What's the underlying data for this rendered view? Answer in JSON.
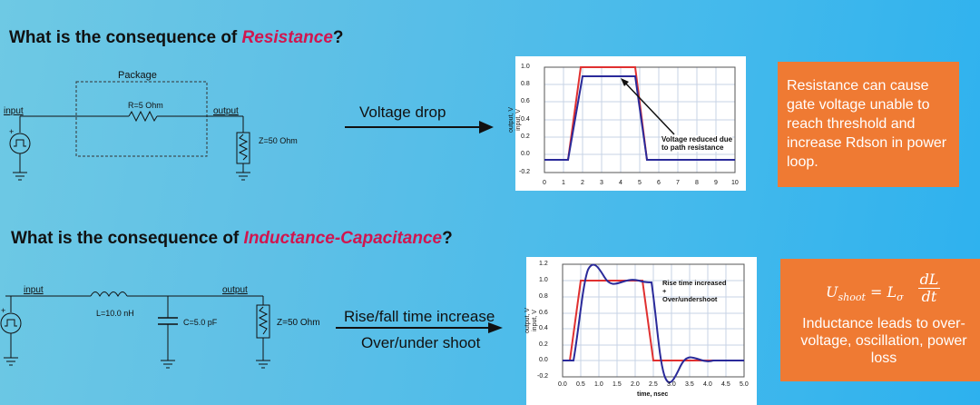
{
  "section1": {
    "question_prefix": "What is the consequence of ",
    "question_keyword": "Resistance",
    "question_suffix": "?",
    "labels": {
      "package": "Package",
      "resistor": "R=5 Ohm",
      "input": "input",
      "output": "output",
      "load": "Z=50 Ohm"
    },
    "effect": "Voltage drop",
    "graph": {
      "y_labels": [
        "1.0",
        "0.8",
        "0.6",
        "0.4",
        "0.2",
        "0.0",
        "-0.2"
      ],
      "x_labels": [
        "0",
        "1",
        "2",
        "3",
        "4",
        "5",
        "6",
        "7",
        "8",
        "9",
        "10"
      ],
      "ylabel_line1": "output, V",
      "ylabel_line2": "input, V",
      "annotation_line1": "Voltage reduced due",
      "annotation_line2": "to path resistance"
    },
    "box_text": "Resistance can cause gate voltage unable to reach threshold and increase Rdson in power loop."
  },
  "section2": {
    "question_prefix": "What is the consequence of ",
    "question_keyword": "Inductance-Capacitance",
    "question_suffix": "?",
    "labels": {
      "input": "input",
      "inductor": "L=10.0 nH",
      "capacitor": "C=5.0 pF",
      "output": "output",
      "load": "Z=50 Ohm"
    },
    "effect_line1": "Rise/fall time increase",
    "effect_line2": "Over/under shoot",
    "graph": {
      "y_labels": [
        "1.2",
        "1.0",
        "0.8",
        "0.6",
        "0.4",
        "0.2",
        "0.0",
        "-0.2"
      ],
      "x_labels": [
        "0.0",
        "0.5",
        "1.0",
        "1.5",
        "2.0",
        "2.5",
        "3.0",
        "3.5",
        "4.0",
        "4.5",
        "5.0"
      ],
      "ylabel_line1": "output, V",
      "ylabel_line2": "input, V",
      "xlabel": "time, nsec",
      "annotation_line1": "Rise time increased",
      "annotation_line2": "+",
      "annotation_line3": "Over/undershoot"
    },
    "equation_lhs": "U",
    "equation_lhs_sub": "shoot",
    "equation_rhs": "L",
    "equation_rhs_sub": "σ",
    "equation_num": "dL",
    "equation_den": "dt",
    "box_text": "Inductance leads to over-voltage, oscillation, power loss"
  },
  "colors": {
    "accent": "#d0164f",
    "box": "#ef7a33",
    "trace_input": "#e03030",
    "trace_output": "#2a2a9a"
  }
}
